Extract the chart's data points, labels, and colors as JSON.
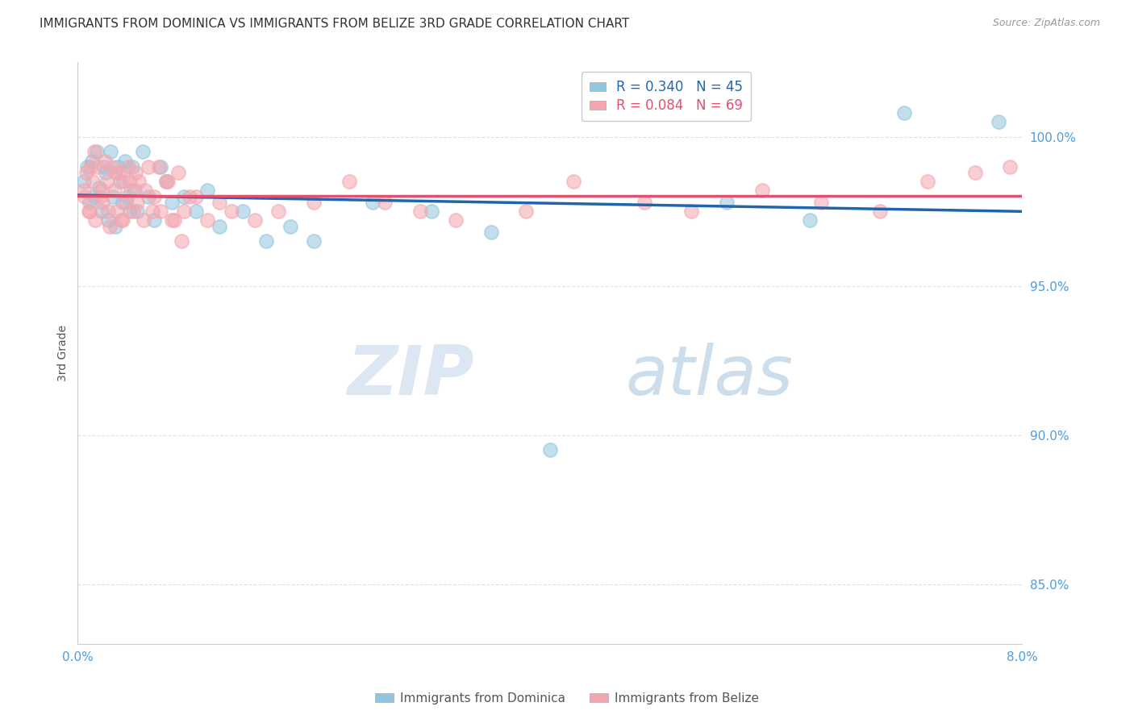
{
  "title": "IMMIGRANTS FROM DOMINICA VS IMMIGRANTS FROM BELIZE 3RD GRADE CORRELATION CHART",
  "source": "Source: ZipAtlas.com",
  "ylabel": "3rd Grade",
  "x_min": 0.0,
  "x_max": 8.0,
  "y_min": 83.0,
  "y_max": 102.5,
  "y_ticks": [
    85.0,
    90.0,
    95.0,
    100.0
  ],
  "y_tick_labels": [
    "85.0%",
    "90.0%",
    "95.0%",
    "100.0%"
  ],
  "legend1_label": "R = 0.340   N = 45",
  "legend2_label": "R = 0.084   N = 69",
  "series1_color": "#92c5de",
  "series2_color": "#f4a6b0",
  "trendline1_color": "#2166ac",
  "trendline2_color": "#e05070",
  "watermark_zip": "ZIP",
  "watermark_atlas": "atlas",
  "background_color": "#ffffff",
  "grid_color": "#dddddd",
  "title_fontsize": 11,
  "tick_label_color": "#4d9de0",
  "dominica_x": [
    0.05,
    0.08,
    0.1,
    0.12,
    0.14,
    0.16,
    0.18,
    0.2,
    0.22,
    0.24,
    0.26,
    0.28,
    0.3,
    0.32,
    0.34,
    0.36,
    0.38,
    0.4,
    0.42,
    0.44,
    0.46,
    0.48,
    0.5,
    0.55,
    0.6,
    0.65,
    0.7,
    0.75,
    0.8,
    0.9,
    1.0,
    1.1,
    1.2,
    1.4,
    1.6,
    1.8,
    2.0,
    2.5,
    3.0,
    3.5,
    4.0,
    5.5,
    6.2,
    7.0,
    7.8
  ],
  "dominica_y": [
    98.5,
    99.0,
    97.8,
    99.2,
    98.0,
    99.5,
    98.3,
    97.5,
    99.0,
    98.8,
    97.2,
    99.5,
    98.0,
    97.0,
    99.0,
    98.5,
    97.8,
    99.2,
    98.0,
    97.5,
    99.0,
    98.2,
    97.5,
    99.5,
    98.0,
    97.2,
    99.0,
    98.5,
    97.8,
    98.0,
    97.5,
    98.2,
    97.0,
    97.5,
    96.5,
    97.0,
    96.5,
    97.8,
    97.5,
    96.8,
    89.5,
    97.8,
    97.2,
    100.8,
    100.5
  ],
  "belize_x": [
    0.05,
    0.07,
    0.09,
    0.11,
    0.13,
    0.15,
    0.17,
    0.19,
    0.21,
    0.23,
    0.25,
    0.27,
    0.29,
    0.31,
    0.33,
    0.35,
    0.37,
    0.39,
    0.41,
    0.43,
    0.45,
    0.47,
    0.49,
    0.52,
    0.56,
    0.6,
    0.65,
    0.7,
    0.75,
    0.8,
    0.85,
    0.9,
    1.0,
    1.1,
    1.2,
    1.3,
    1.5,
    1.7,
    2.0,
    2.3,
    2.6,
    2.9,
    3.2,
    3.8,
    4.2,
    4.8,
    5.2,
    5.8,
    6.3,
    6.8,
    7.2,
    7.6,
    7.9,
    0.06,
    0.1,
    0.14,
    0.2,
    0.26,
    0.32,
    0.38,
    0.44,
    0.5,
    0.57,
    0.63,
    0.69,
    0.76,
    0.82,
    0.88,
    0.95
  ],
  "belize_y": [
    98.2,
    98.8,
    97.5,
    99.0,
    98.5,
    97.2,
    99.0,
    98.0,
    97.8,
    99.2,
    98.5,
    97.0,
    99.0,
    98.2,
    97.5,
    98.8,
    97.2,
    98.5,
    97.8,
    99.0,
    98.2,
    97.5,
    98.8,
    98.5,
    97.2,
    99.0,
    98.0,
    97.5,
    98.5,
    97.2,
    98.8,
    97.5,
    98.0,
    97.2,
    97.8,
    97.5,
    97.2,
    97.5,
    97.8,
    98.5,
    97.8,
    97.5,
    97.2,
    97.5,
    98.5,
    97.8,
    97.5,
    98.2,
    97.8,
    97.5,
    98.5,
    98.8,
    99.0,
    98.0,
    97.5,
    99.5,
    98.2,
    97.5,
    98.8,
    97.2,
    98.5,
    97.8,
    98.2,
    97.5,
    99.0,
    98.5,
    97.2,
    96.5,
    98.0
  ],
  "bottom_legend_label1": "Immigrants from Dominica",
  "bottom_legend_label2": "Immigrants from Belize"
}
